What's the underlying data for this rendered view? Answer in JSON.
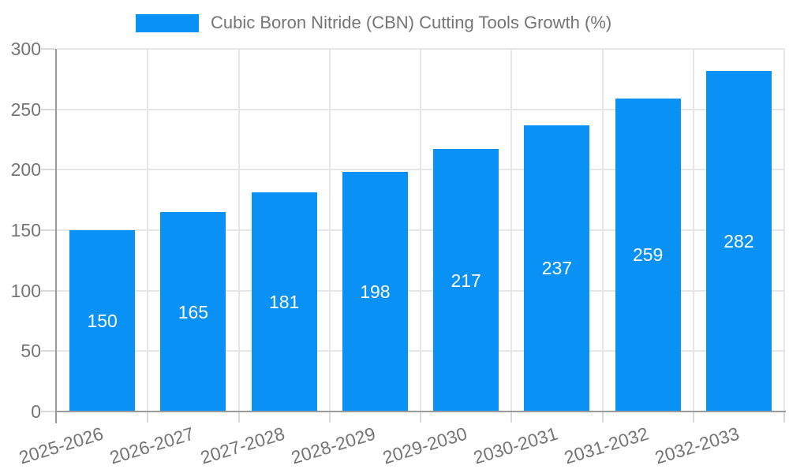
{
  "chart_data": {
    "type": "bar",
    "title": "Cubic Boron Nitride (CBN) Cutting Tools Growth (%)",
    "categories": [
      "2025-2026",
      "2026-2027",
      "2027-2028",
      "2028-2029",
      "2029-2030",
      "2030-2031",
      "2031-2032",
      "2032-2033"
    ],
    "values": [
      150,
      165,
      181,
      198,
      217,
      237,
      259,
      282
    ],
    "xlabel": "",
    "ylabel": "",
    "ylim": [
      0,
      300
    ],
    "yticks": [
      0,
      50,
      100,
      150,
      200,
      250,
      300
    ],
    "grid": true,
    "value_labels": "inside-center",
    "legend_position": "top-center",
    "colors": {
      "bar": "#0991f5",
      "value_label": "#ffffff",
      "axis_text": "#757575",
      "axis_line": "#9a9a9a",
      "tick_line": "#d9d9d9",
      "gridline": "#e6e6e6",
      "background": "#ffffff"
    }
  }
}
